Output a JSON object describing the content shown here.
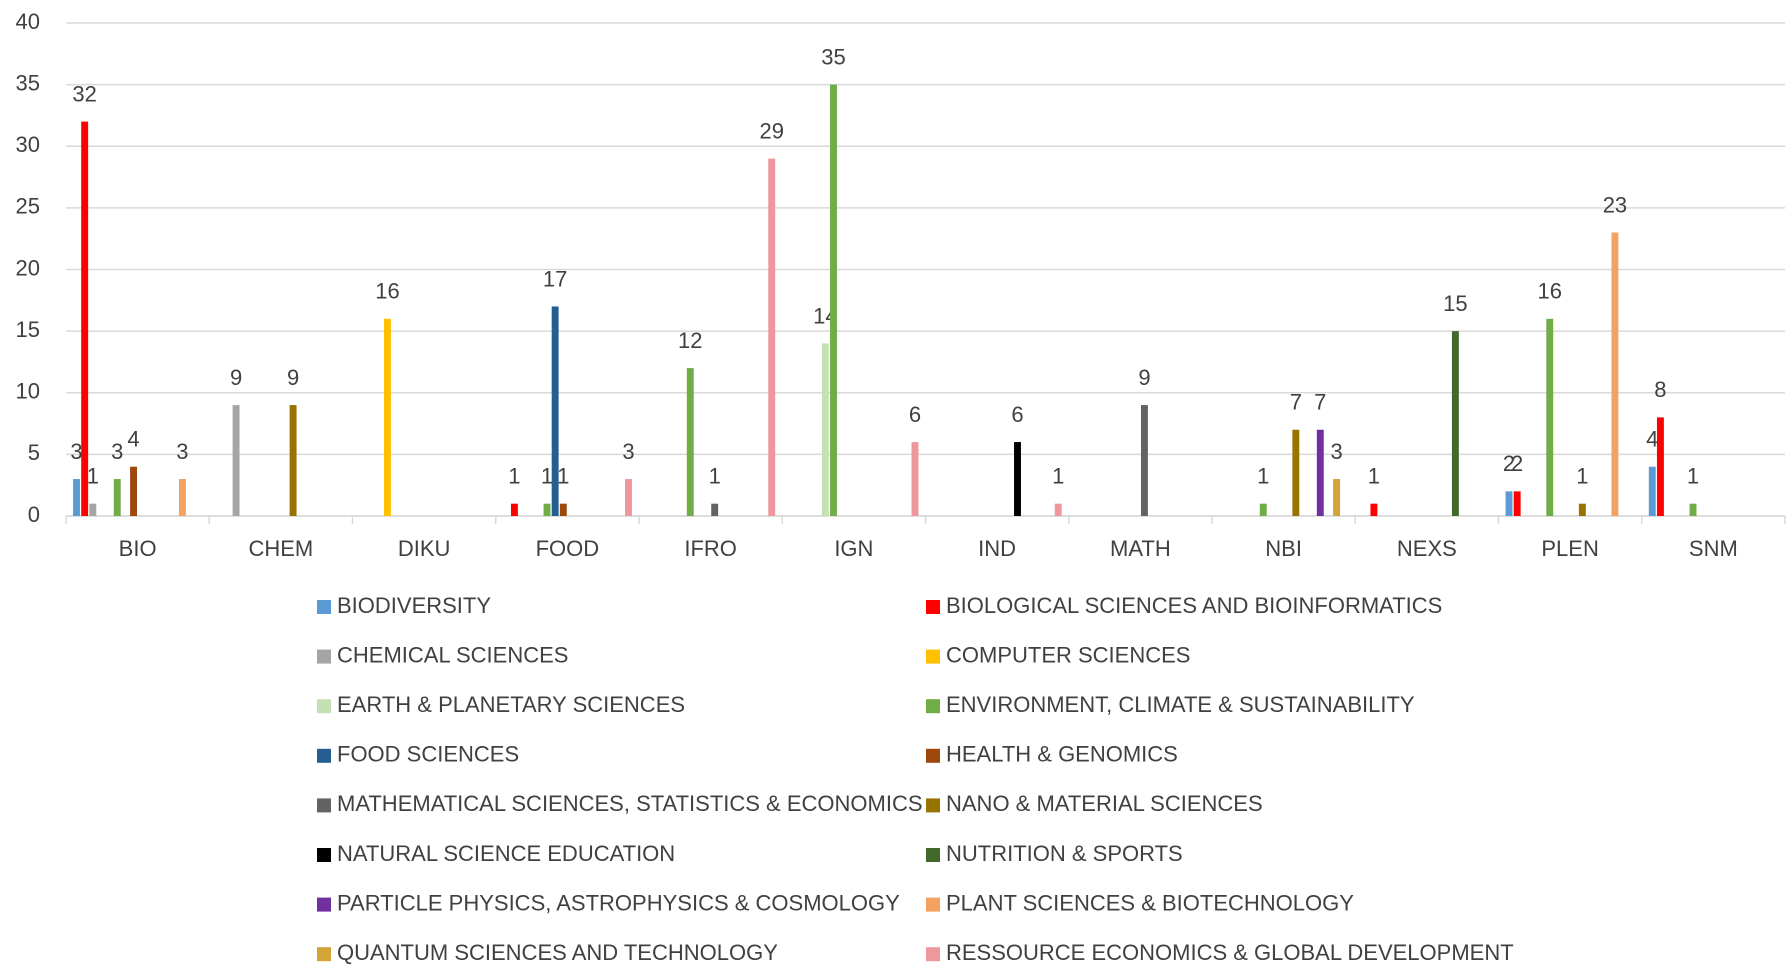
{
  "chart_data": {
    "type": "bar",
    "categories": [
      "BIO",
      "CHEM",
      "DIKU",
      "FOOD",
      "IFRO",
      "IGN",
      "IND",
      "MATH",
      "NBI",
      "NEXS",
      "PLEN",
      "SNM"
    ],
    "series": [
      {
        "name": "BIODIVERSITY",
        "color": "#5b9bd5",
        "values": [
          3,
          null,
          null,
          null,
          null,
          null,
          null,
          null,
          null,
          null,
          2,
          4
        ]
      },
      {
        "name": "BIOLOGICAL SCIENCES AND BIOINFORMATICS",
        "color": "#ff0000",
        "values": [
          32,
          null,
          null,
          1,
          null,
          null,
          null,
          null,
          null,
          1,
          2,
          8
        ]
      },
      {
        "name": "CHEMICAL SCIENCES",
        "color": "#a5a5a5",
        "values": [
          1,
          9,
          null,
          null,
          null,
          null,
          null,
          null,
          null,
          null,
          null,
          null
        ]
      },
      {
        "name": "COMPUTER SCIENCES",
        "color": "#ffc000",
        "values": [
          null,
          null,
          16,
          null,
          null,
          null,
          null,
          null,
          null,
          null,
          null,
          null
        ]
      },
      {
        "name": "EARTH & PLANETARY SCIENCES",
        "color": "#c5e0b4",
        "values": [
          null,
          null,
          null,
          null,
          null,
          14,
          null,
          null,
          null,
          null,
          null,
          null
        ]
      },
      {
        "name": "ENVIRONMENT, CLIMATE & SUSTAINABILITY",
        "color": "#70ad47",
        "values": [
          3,
          null,
          null,
          1,
          12,
          35,
          null,
          null,
          1,
          null,
          16,
          1
        ]
      },
      {
        "name": "FOOD SCIENCES",
        "color": "#255e91",
        "values": [
          null,
          null,
          null,
          17,
          null,
          null,
          null,
          null,
          null,
          null,
          null,
          null
        ]
      },
      {
        "name": "HEALTH & GENOMICS",
        "color": "#9e480e",
        "values": [
          4,
          null,
          null,
          1,
          null,
          null,
          null,
          null,
          null,
          null,
          null,
          null
        ]
      },
      {
        "name": "MATHEMATICAL SCIENCES, STATISTICS & ECONOMICS",
        "color": "#636363",
        "values": [
          null,
          null,
          null,
          null,
          1,
          null,
          null,
          9,
          null,
          null,
          null,
          null
        ]
      },
      {
        "name": "NANO & MATERIAL SCIENCES",
        "color": "#997300",
        "values": [
          null,
          9,
          null,
          null,
          null,
          null,
          null,
          null,
          7,
          null,
          1,
          null
        ]
      },
      {
        "name": "NATURAL SCIENCE EDUCATION",
        "color": "#000000",
        "values": [
          null,
          null,
          null,
          null,
          null,
          null,
          6,
          null,
          null,
          null,
          null,
          null
        ]
      },
      {
        "name": "NUTRITION & SPORTS",
        "color": "#43682b",
        "values": [
          null,
          null,
          null,
          null,
          null,
          null,
          null,
          null,
          null,
          15,
          null,
          null
        ]
      },
      {
        "name": "PARTICLE PHYSICS, ASTROPHYSICS & COSMOLOGY",
        "color": "#7030a0",
        "values": [
          null,
          null,
          null,
          null,
          null,
          null,
          null,
          null,
          7,
          null,
          null,
          null
        ]
      },
      {
        "name": "PLANT SCIENCES & BIOTECHNOLOGY",
        "color": "#f4a261",
        "values": [
          3,
          null,
          null,
          null,
          null,
          null,
          null,
          null,
          null,
          null,
          23,
          null
        ]
      },
      {
        "name": "QUANTUM SCIENCES AND TECHNOLOGY",
        "color": "#d4a437",
        "values": [
          null,
          null,
          null,
          null,
          null,
          null,
          null,
          null,
          3,
          null,
          null,
          null
        ]
      },
      {
        "name": "RESSOURCE ECONOMICS & GLOBAL DEVELOPMENT",
        "color": "#ee979c",
        "values": [
          null,
          null,
          null,
          3,
          29,
          6,
          1,
          null,
          null,
          null,
          null,
          null
        ]
      }
    ],
    "ylim": [
      0,
      40
    ],
    "yticks": [
      0,
      5,
      10,
      15,
      20,
      25,
      30,
      35,
      40
    ],
    "grid": true,
    "legend": "bottom"
  }
}
